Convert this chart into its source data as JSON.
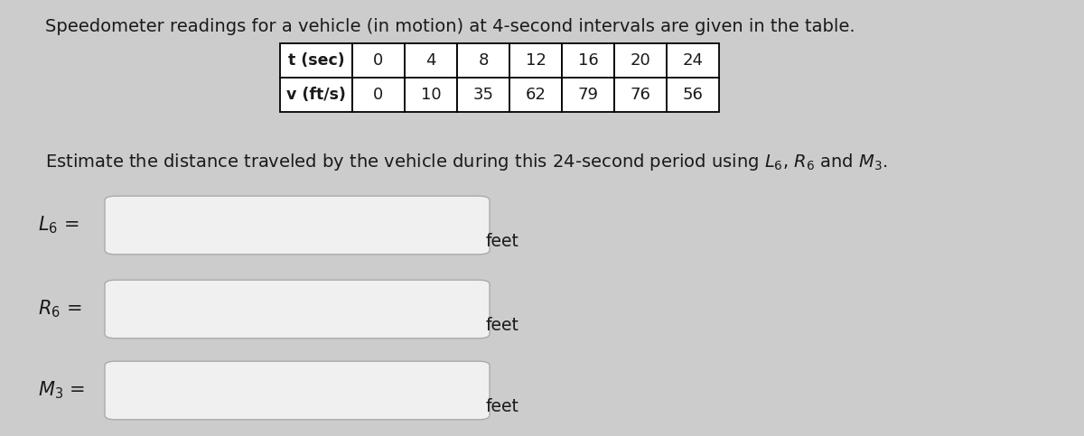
{
  "title_part1": "Speedometer readings for a vehicle (in motion) at 4-second intervals are given in the table.",
  "table_headers": [
    "t (sec)",
    "0",
    "4",
    "8",
    "12",
    "16",
    "20",
    "24"
  ],
  "table_row2": [
    "v (ft/s)",
    "0",
    "10",
    "35",
    "62",
    "79",
    "76",
    "56"
  ],
  "estimate_text": "Estimate the distance traveled by the vehicle during this 24-second period using $L_6$, $R_6$ and $M_3$.",
  "label_L6": "$L_6$ =",
  "label_R6": "$R_6$ =",
  "label_M3": "$M_3$ =",
  "unit_text": "feet",
  "bg_color": "#cccccc",
  "text_color": "#1a1a1a",
  "font_size_title": 14,
  "font_size_table": 13,
  "font_size_labels": 15,
  "font_size_estimate": 14,
  "font_size_unit": 13.5
}
